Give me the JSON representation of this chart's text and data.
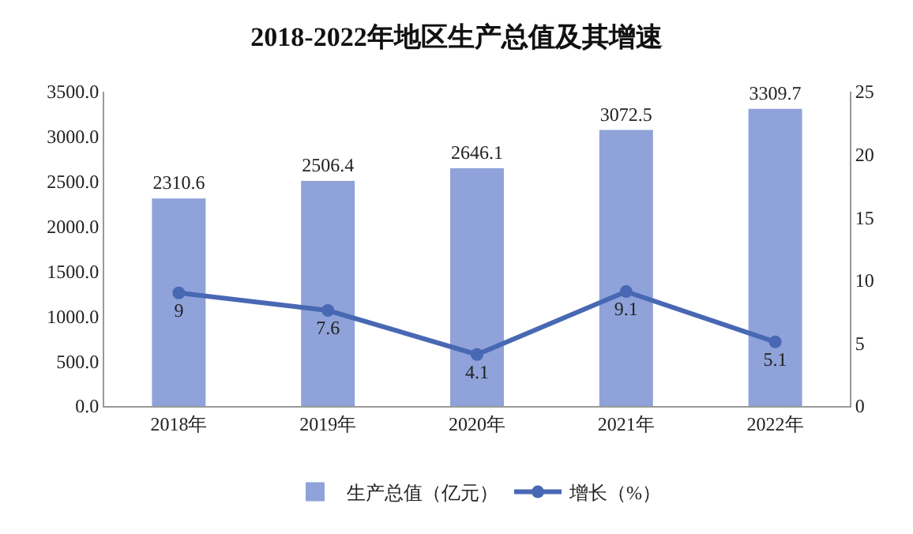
{
  "chart_data": {
    "type": "bar",
    "title": "2018-2022年地区生产总值及其增速",
    "categories": [
      "2018年",
      "2019年",
      "2020年",
      "2021年",
      "2022年"
    ],
    "series": [
      {
        "name": "生产总值（亿元）",
        "color": "#8fa2d9",
        "values": [
          2310.6,
          2506.4,
          2646.1,
          3072.5,
          3309.7
        ]
      },
      {
        "name": "增长（%）",
        "type": "line",
        "axis": "y2",
        "color": "#4868b3",
        "values": [
          9,
          7.6,
          4.1,
          9.1,
          5.1
        ]
      }
    ],
    "ylim": [
      0,
      3500
    ],
    "yticks": [
      {
        "value": 0,
        "label": "0.0"
      },
      {
        "value": 500,
        "label": "500.0"
      },
      {
        "value": 1000,
        "label": "1000.0"
      },
      {
        "value": 1500,
        "label": "1500.0"
      },
      {
        "value": 2000,
        "label": "2000.0"
      },
      {
        "value": 2500,
        "label": "2500.0"
      },
      {
        "value": 3000,
        "label": "3000.0"
      },
      {
        "value": 3500,
        "label": "3500.0"
      }
    ],
    "y2lim": [
      0,
      25
    ],
    "y2ticks": [
      0,
      5,
      10,
      15,
      20,
      25
    ],
    "data_labels": true,
    "legend": "bottom",
    "marker": "circle",
    "line_style": "solid"
  }
}
